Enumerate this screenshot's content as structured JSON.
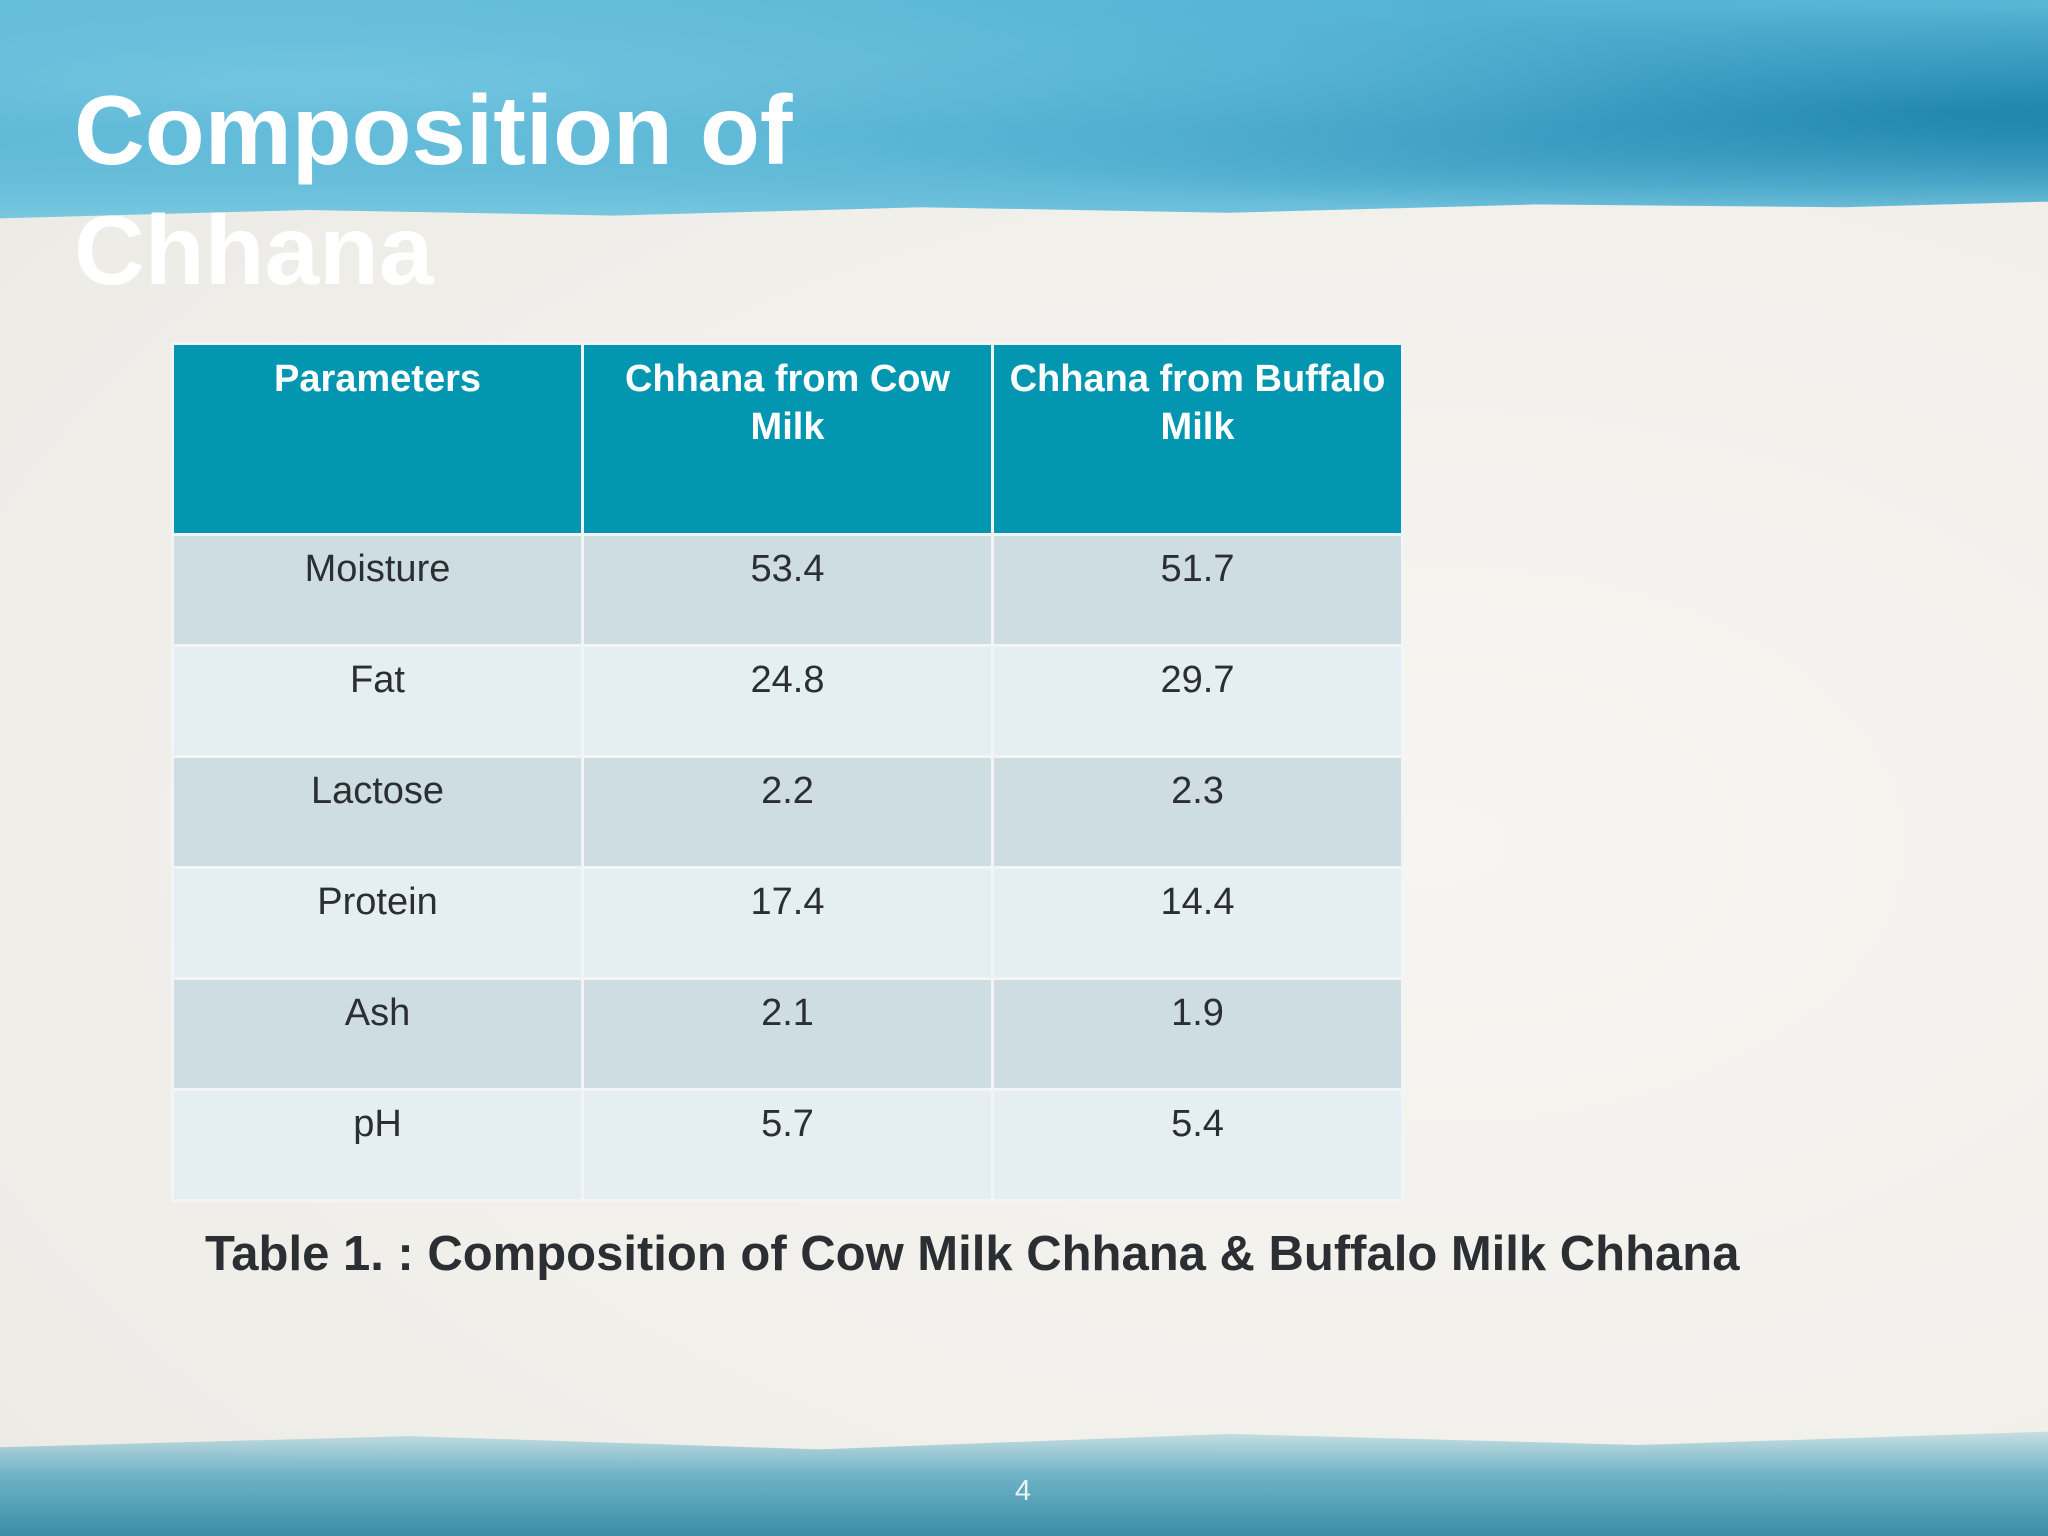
{
  "title": "Composition of Chhana",
  "table": {
    "header": [
      "Parameters",
      "Chhana from Cow Milk",
      "Chhana from Buffalo Milk"
    ],
    "rows": [
      [
        "Moisture",
        "53.4",
        "51.7"
      ],
      [
        "Fat",
        "24.8",
        "29.7"
      ],
      [
        "Lactose",
        "2.2",
        "2.3"
      ],
      [
        "Protein",
        "17.4",
        "14.4"
      ],
      [
        "Ash",
        "2.1",
        "1.9"
      ],
      [
        "pH",
        "5.7",
        "5.4"
      ]
    ]
  },
  "caption": "Table 1. : Composition of Cow Milk Chhana & Buffalo Milk Chhana",
  "page_number": "4"
}
